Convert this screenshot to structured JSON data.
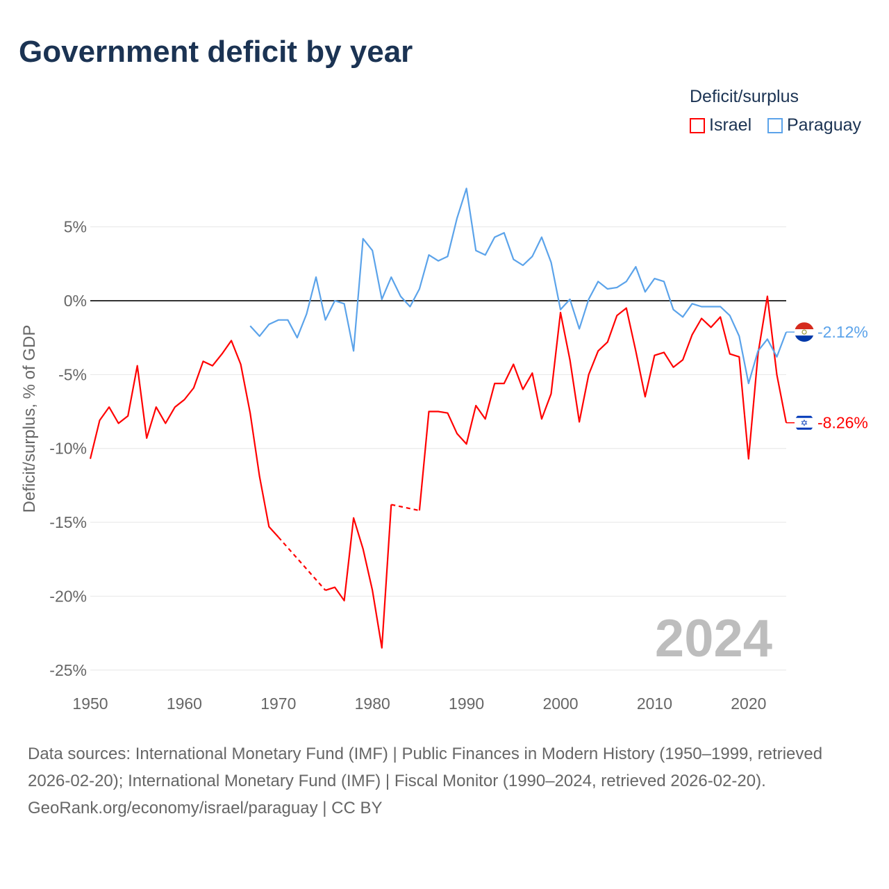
{
  "title": "Government deficit by year",
  "legend": {
    "title": "Deficit/surplus",
    "items": [
      {
        "label": "Israel",
        "color": "#ff0000"
      },
      {
        "label": "Paraguay",
        "color": "#5ba3ea"
      }
    ]
  },
  "year_label": "2024",
  "footer": {
    "sources": "Data sources: International Monetary Fund (IMF) | Public Finances in Modern History (1950–1999, retrieved 2026-02-20); International Monetary Fund (IMF) | Fiscal Monitor (1990–2024, retrieved 2026-02-20).",
    "credit": "GeoRank.org/economy/israel/paraguay | CC BY"
  },
  "chart_data": {
    "type": "line",
    "title": "Government deficit by year",
    "xlabel": "",
    "ylabel": "Deficit/surplus, % of GDP",
    "xlim": [
      1950,
      2024
    ],
    "ylim": [
      -25,
      7.6
    ],
    "x_ticks": [
      1950,
      1960,
      1970,
      1980,
      1990,
      2000,
      2010,
      2020
    ],
    "y_ticks": [
      5,
      0,
      -5,
      -10,
      -15,
      -20,
      -25
    ],
    "y_tick_labels": [
      "5%",
      "0%",
      "-5%",
      "-10%",
      "-15%",
      "-20%",
      "-25%"
    ],
    "x_tick_labels": [
      "1950",
      "1960",
      "1970",
      "1980",
      "1990",
      "2000",
      "2010",
      "2020"
    ],
    "x_start": 1950,
    "series": [
      {
        "name": "Israel",
        "color": "#ff0000",
        "end_label": "-8.26%",
        "values": [
          -10.7,
          -8.1,
          -7.2,
          -8.3,
          -7.8,
          -4.4,
          -9.3,
          -7.2,
          -8.3,
          -7.2,
          -6.7,
          -5.9,
          -4.1,
          -4.4,
          -3.6,
          -2.7,
          -4.3,
          -7.6,
          -11.9,
          -15.3,
          -16.0,
          null,
          null,
          null,
          null,
          -19.6,
          -19.4,
          -20.3,
          -14.7,
          -16.8,
          -19.6,
          -23.5,
          -13.8,
          null,
          null,
          -14.2,
          -7.5,
          -7.5,
          -7.6,
          -9.0,
          -9.7,
          -7.1,
          -8.0,
          -5.6,
          -5.6,
          -4.3,
          -6.0,
          -4.9,
          -8.0,
          -6.3,
          -0.8,
          -4.0,
          -8.2,
          -5.0,
          -3.4,
          -2.8,
          -1.0,
          -0.5,
          -3.4,
          -6.5,
          -3.7,
          -3.5,
          -4.5,
          -4.0,
          -2.3,
          -1.2,
          -1.8,
          -1.1,
          -3.6,
          -3.8,
          -10.7,
          -3.6,
          0.3,
          -5.0,
          -8.26
        ]
      },
      {
        "name": "Paraguay",
        "color": "#5ba3ea",
        "end_label": "-2.12%",
        "values": [
          null,
          null,
          null,
          null,
          null,
          null,
          null,
          null,
          null,
          null,
          null,
          null,
          null,
          null,
          null,
          null,
          null,
          -1.7,
          -2.4,
          -1.6,
          -1.3,
          -1.3,
          -2.5,
          -0.9,
          1.6,
          -1.3,
          0.0,
          -0.2,
          -3.4,
          4.2,
          3.4,
          0.1,
          1.6,
          0.3,
          -0.4,
          0.8,
          3.1,
          2.7,
          3.0,
          5.6,
          7.6,
          3.4,
          3.1,
          4.3,
          4.6,
          2.8,
          2.4,
          3.0,
          4.3,
          2.6,
          -0.6,
          0.1,
          -1.9,
          0.1,
          1.3,
          0.8,
          0.9,
          1.3,
          2.3,
          0.6,
          1.5,
          1.3,
          -0.6,
          -1.1,
          -0.2,
          -0.4,
          -0.4,
          -0.4,
          -1.0,
          -2.4,
          -5.6,
          -3.4,
          -2.6,
          -3.8,
          -2.12
        ]
      }
    ]
  }
}
